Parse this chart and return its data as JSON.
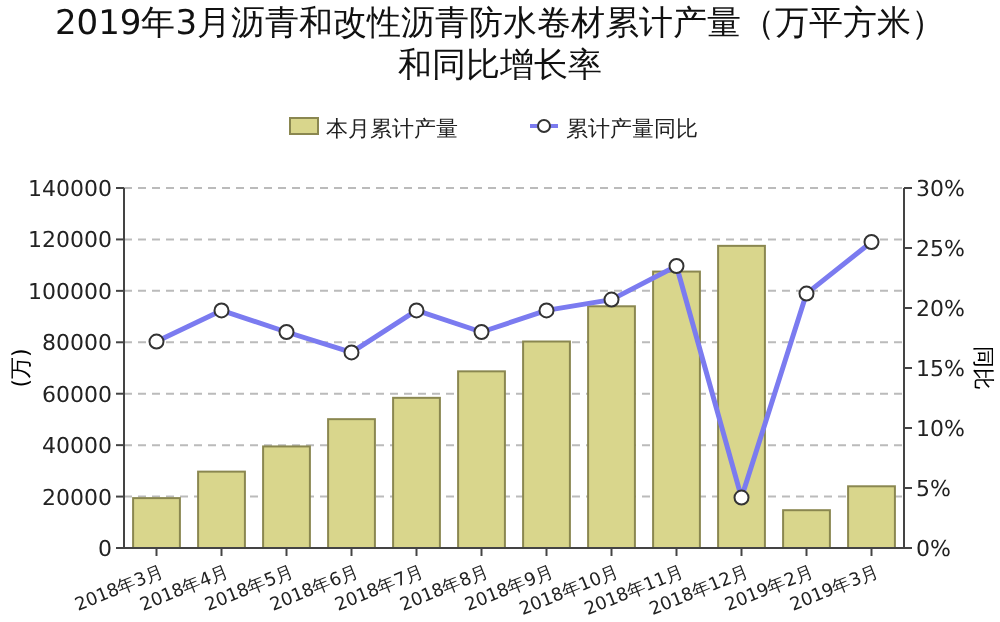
{
  "chart_data": {
    "type": "bar",
    "title": "2019年3月沥青和改性沥青防水卷材累计产量（万平方米）和同比增长率",
    "categories": [
      "2018年3月",
      "2018年4月",
      "2018年5月",
      "2018年6月",
      "2018年7月",
      "2018年8月",
      "2018年9月",
      "2018年10月",
      "2018年11月",
      "2018年12月",
      "2019年2月",
      "2019年3月"
    ],
    "series": [
      {
        "name": "本月累计产量",
        "color": "#d9d68c",
        "values": [
          19400,
          29700,
          39500,
          50100,
          58400,
          68700,
          80300,
          94000,
          107500,
          117500,
          14700,
          24000
        ]
      },
      {
        "name": "累计产量同比",
        "type": "line",
        "axis": "y2",
        "color": "#7b7bf0",
        "marker": "circle",
        "values": [
          17.2,
          19.8,
          18.0,
          16.3,
          19.8,
          18.0,
          19.8,
          20.7,
          23.5,
          4.2,
          21.2,
          25.5
        ]
      }
    ],
    "ylabel": "(万)",
    "y2label": "同比",
    "ylim": [
      0,
      140000
    ],
    "yticks": [
      0,
      20000,
      40000,
      60000,
      80000,
      100000,
      120000,
      140000
    ],
    "y2lim": [
      0,
      30
    ],
    "y2ticks": [
      {
        "value": 0,
        "label": "0%"
      },
      {
        "value": 5,
        "label": "5%"
      },
      {
        "value": 10,
        "label": "10%"
      },
      {
        "value": 15,
        "label": "15%"
      },
      {
        "value": 20,
        "label": "20%"
      },
      {
        "value": 25,
        "label": "25%"
      },
      {
        "value": 30,
        "label": "30%"
      }
    ],
    "grid": "y",
    "legend": "top"
  }
}
